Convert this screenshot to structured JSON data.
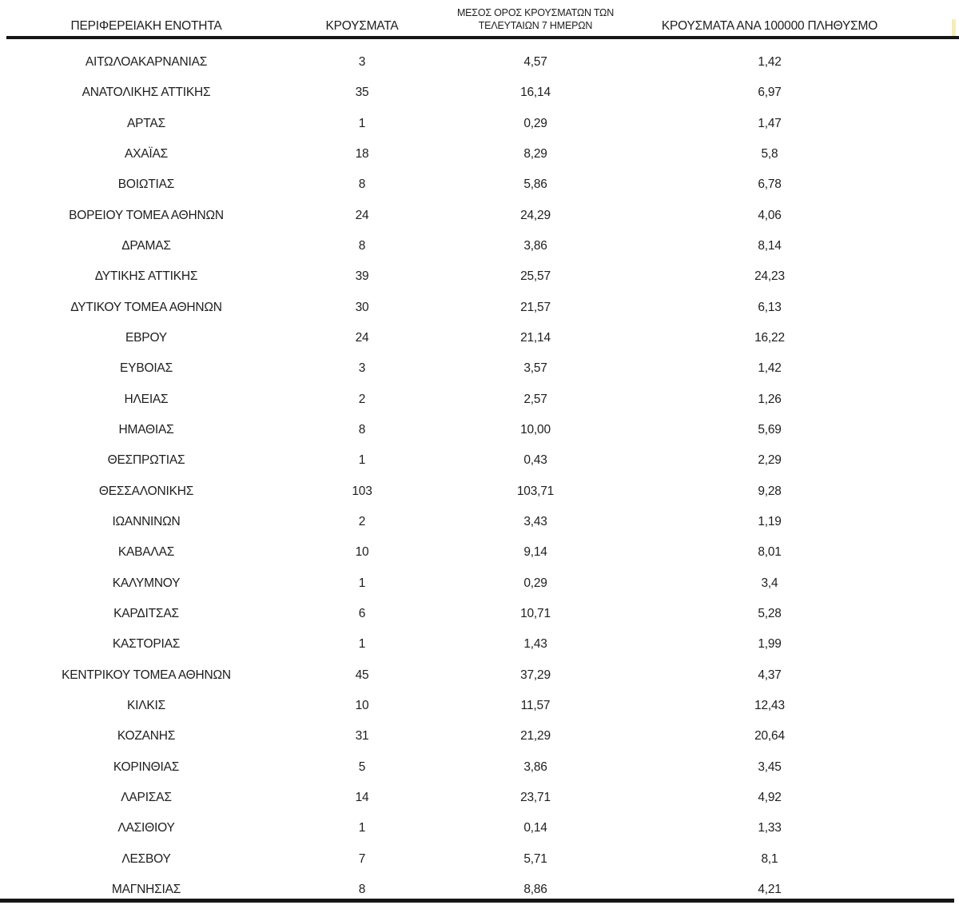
{
  "colors": {
    "background": "#ffffff",
    "text": "#1e1e1e",
    "rule": "#161616",
    "highlight_artifact": "#f3edbb"
  },
  "table": {
    "columns": [
      {
        "label": "ΠΕΡΙΦΕΡΕΙΑΚΗ ΕΝΟΤΗΤΑ"
      },
      {
        "label": "ΚΡΟΥΣΜΑΤΑ"
      },
      {
        "label_line1": "ΜΕΣΟΣ ΟΡΟΣ ΚΡΟΥΣΜΑΤΩΝ ΤΩΝ",
        "label_line2": "ΤΕΛΕΥΤΑΙΩΝ 7 ΗΜΕΡΩΝ"
      },
      {
        "label": "ΚΡΟΥΣΜΑΤΑ ΑΝΑ 100000 ΠΛΗΘΥΣΜΟ"
      }
    ],
    "rows": [
      {
        "region": "ΑΙΤΩΛΟΑΚΑΡΝΑΝΙΑΣ",
        "cases": "3",
        "avg7": "4,57",
        "per100k": "1,42"
      },
      {
        "region": "ΑΝΑΤΟΛΙΚΗΣ ΑΤΤΙΚΗΣ",
        "cases": "35",
        "avg7": "16,14",
        "per100k": "6,97"
      },
      {
        "region": "ΑΡΤΑΣ",
        "cases": "1",
        "avg7": "0,29",
        "per100k": "1,47"
      },
      {
        "region": "ΑΧΑΪΑΣ",
        "cases": "18",
        "avg7": "8,29",
        "per100k": "5,8"
      },
      {
        "region": "ΒΟΙΩΤΙΑΣ",
        "cases": "8",
        "avg7": "5,86",
        "per100k": "6,78"
      },
      {
        "region": "ΒΟΡΕΙΟΥ ΤΟΜΕΑ ΑΘΗΝΩΝ",
        "cases": "24",
        "avg7": "24,29",
        "per100k": "4,06"
      },
      {
        "region": "ΔΡΑΜΑΣ",
        "cases": "8",
        "avg7": "3,86",
        "per100k": "8,14"
      },
      {
        "region": "ΔΥΤΙΚΗΣ ΑΤΤΙΚΗΣ",
        "cases": "39",
        "avg7": "25,57",
        "per100k": "24,23"
      },
      {
        "region": "ΔΥΤΙΚΟΥ ΤΟΜΕΑ ΑΘΗΝΩΝ",
        "cases": "30",
        "avg7": "21,57",
        "per100k": "6,13"
      },
      {
        "region": "ΕΒΡΟΥ",
        "cases": "24",
        "avg7": "21,14",
        "per100k": "16,22"
      },
      {
        "region": "ΕΥΒΟΙΑΣ",
        "cases": "3",
        "avg7": "3,57",
        "per100k": "1,42"
      },
      {
        "region": "ΗΛΕΙΑΣ",
        "cases": "2",
        "avg7": "2,57",
        "per100k": "1,26"
      },
      {
        "region": "ΗΜΑΘΙΑΣ",
        "cases": "8",
        "avg7": "10,00",
        "per100k": "5,69"
      },
      {
        "region": "ΘΕΣΠΡΩΤΙΑΣ",
        "cases": "1",
        "avg7": "0,43",
        "per100k": "2,29"
      },
      {
        "region": "ΘΕΣΣΑΛΟΝΙΚΗΣ",
        "cases": "103",
        "avg7": "103,71",
        "per100k": "9,28"
      },
      {
        "region": "ΙΩΑΝΝΙΝΩΝ",
        "cases": "2",
        "avg7": "3,43",
        "per100k": "1,19"
      },
      {
        "region": "ΚΑΒΑΛΑΣ",
        "cases": "10",
        "avg7": "9,14",
        "per100k": "8,01"
      },
      {
        "region": "ΚΑΛΥΜΝΟΥ",
        "cases": "1",
        "avg7": "0,29",
        "per100k": "3,4"
      },
      {
        "region": "ΚΑΡΔΙΤΣΑΣ",
        "cases": "6",
        "avg7": "10,71",
        "per100k": "5,28"
      },
      {
        "region": "ΚΑΣΤΟΡΙΑΣ",
        "cases": "1",
        "avg7": "1,43",
        "per100k": "1,99"
      },
      {
        "region": "ΚΕΝΤΡΙΚΟΥ ΤΟΜΕΑ ΑΘΗΝΩΝ",
        "cases": "45",
        "avg7": "37,29",
        "per100k": "4,37"
      },
      {
        "region": "ΚΙΛΚΙΣ",
        "cases": "10",
        "avg7": "11,57",
        "per100k": "12,43"
      },
      {
        "region": "ΚΟΖΑΝΗΣ",
        "cases": "31",
        "avg7": "21,29",
        "per100k": "20,64"
      },
      {
        "region": "ΚΟΡΙΝΘΙΑΣ",
        "cases": "5",
        "avg7": "3,86",
        "per100k": "3,45"
      },
      {
        "region": "ΛΑΡΙΣΑΣ",
        "cases": "14",
        "avg7": "23,71",
        "per100k": "4,92"
      },
      {
        "region": "ΛΑΣΙΘΙΟΥ",
        "cases": "1",
        "avg7": "0,14",
        "per100k": "1,33"
      },
      {
        "region": "ΛΕΣΒΟΥ",
        "cases": "7",
        "avg7": "5,71",
        "per100k": "8,1"
      },
      {
        "region": "ΜΑΓΝΗΣΙΑΣ",
        "cases": "8",
        "avg7": "8,86",
        "per100k": "4,21"
      }
    ]
  }
}
